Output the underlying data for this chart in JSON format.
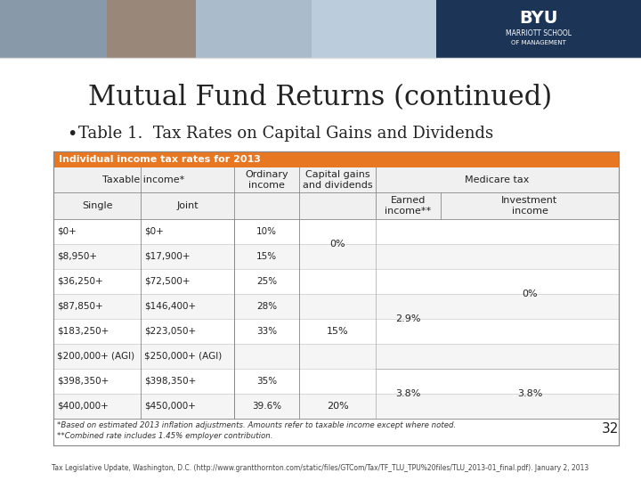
{
  "title": "Mutual Fund Returns (continued)",
  "bullet": "Table 1.  Tax Rates on Capital Gains and Dividends",
  "table_header": "Individual income tax rates for 2013",
  "header_bg": "#E87722",
  "header_text_color": "#FFFFFF",
  "col_headers_row1": [
    "Taxable income*",
    "",
    "Ordinary\nincome",
    "Capital gains\nand dividends",
    "Medicare tax",
    ""
  ],
  "col_headers_row2": [
    "Single",
    "Joint",
    "",
    "",
    "Earned\nincome**",
    "Investment\nincome"
  ],
  "rows": [
    [
      "$0+",
      "$0+",
      "10%",
      "0%",
      "",
      ""
    ],
    [
      "$8,950+",
      "$17,900+",
      "15%",
      "",
      "",
      ""
    ],
    [
      "$36,250+",
      "$72,500+",
      "25%",
      "",
      "2.9%",
      "0%"
    ],
    [
      "$87,850+",
      "$146,400+",
      "28%",
      "",
      "",
      ""
    ],
    [
      "$183,250+",
      "$223,050+",
      "33%",
      "15%",
      "",
      ""
    ],
    [
      "$200,000+ (AGI)",
      "$250,000+ (AGI)",
      "",
      "",
      "",
      ""
    ],
    [
      "$398,350+",
      "$398,350+",
      "35%",
      "",
      "3.8%",
      "3.8%"
    ],
    [
      "$400,000+",
      "$450,000+",
      "39.6%",
      "20%",
      "",
      ""
    ]
  ],
  "footnotes": [
    "*Based on estimated 2013 inflation adjustments. Amounts refer to taxable income except where noted.",
    "**Combined rate includes 1.45% employer contribution."
  ],
  "page_number": "32",
  "footer_text": "Tax Legislative Update, Washington, D.C. (http://www.grantthornton.com/static/files/GTCom/Tax/TF_TLU_TPU%20files/TLU_2013-01_final.pdf). January 2, 2013",
  "slide_bg": "#FFFFFF",
  "table_border_color": "#AAAAAA",
  "row_alt_color": "#F5F5F5",
  "row_normal_color": "#FFFFFF",
  "col_merge_cap_gains": [
    0,
    1
  ],
  "col_merge_medicare": [
    4,
    5
  ],
  "header_image_bg": "#CCCCCC"
}
